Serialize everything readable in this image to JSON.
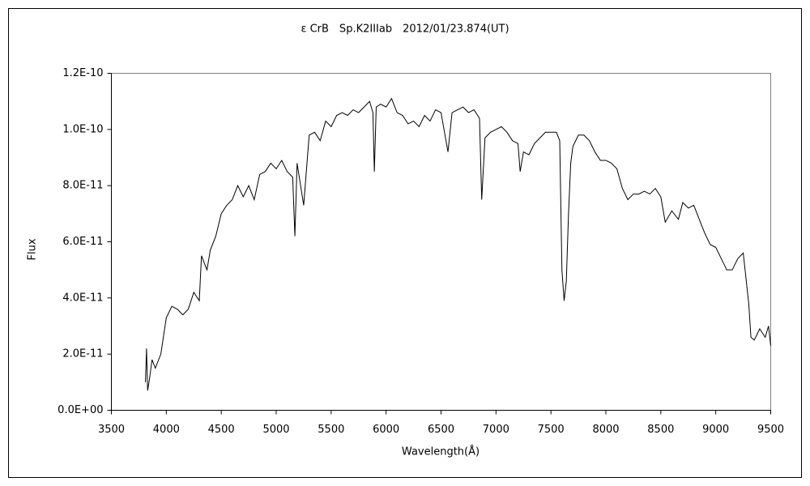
{
  "chart_data": {
    "type": "line",
    "title": "ε CrB　Sp.K2IIIab　2012/01/23.874(UT)",
    "x_label": "Wavelength(Å)",
    "y_label": "Flux",
    "xlim": [
      3500,
      9500
    ],
    "xticks": [
      3500,
      4000,
      4500,
      5000,
      5500,
      6000,
      6500,
      7000,
      7500,
      8000,
      8500,
      9000,
      9500
    ],
    "ylim": [
      0,
      1.2e-10
    ],
    "yticks": [
      {
        "value": 0,
        "label": "0.0E+00"
      },
      {
        "value": 2e-11,
        "label": "2.0E-11"
      },
      {
        "value": 4e-11,
        "label": "4.0E-11"
      },
      {
        "value": 6e-11,
        "label": "6.0E-11"
      },
      {
        "value": 8e-11,
        "label": "8.0E-11"
      },
      {
        "value": 1e-10,
        "label": "1.0E-10"
      },
      {
        "value": 1.2e-10,
        "label": "1.2E-10"
      }
    ],
    "x": [
      3810,
      3820,
      3830,
      3850,
      3870,
      3900,
      3950,
      4000,
      4050,
      4100,
      4150,
      4200,
      4250,
      4300,
      4320,
      4370,
      4400,
      4450,
      4500,
      4550,
      4600,
      4650,
      4700,
      4750,
      4800,
      4850,
      4900,
      4950,
      5000,
      5050,
      5100,
      5150,
      5170,
      5190,
      5250,
      5300,
      5350,
      5400,
      5450,
      5500,
      5550,
      5600,
      5650,
      5700,
      5750,
      5800,
      5850,
      5880,
      5893,
      5910,
      5950,
      6000,
      6050,
      6100,
      6150,
      6200,
      6250,
      6300,
      6350,
      6400,
      6450,
      6500,
      6563,
      6600,
      6650,
      6700,
      6750,
      6800,
      6850,
      6870,
      6900,
      6950,
      7000,
      7050,
      7100,
      7150,
      7200,
      7220,
      7250,
      7300,
      7350,
      7400,
      7450,
      7500,
      7550,
      7580,
      7600,
      7620,
      7640,
      7660,
      7680,
      7700,
      7750,
      7800,
      7850,
      7900,
      7950,
      8000,
      8050,
      8100,
      8150,
      8200,
      8250,
      8300,
      8350,
      8400,
      8450,
      8500,
      8540,
      8600,
      8660,
      8700,
      8750,
      8800,
      8850,
      8900,
      8950,
      9000,
      9050,
      9100,
      9150,
      9200,
      9250,
      9300,
      9320,
      9350,
      9400,
      9450,
      9480,
      9500
    ],
    "series": [
      {
        "color": "#000000",
        "values": [
          1e-11,
          2.2e-11,
          7e-12,
          1.2e-11,
          1.8e-11,
          1.5e-11,
          2e-11,
          3.3e-11,
          3.7e-11,
          3.6e-11,
          3.4e-11,
          3.6e-11,
          4.2e-11,
          3.9e-11,
          5.5e-11,
          5e-11,
          5.7e-11,
          6.2e-11,
          7e-11,
          7.3e-11,
          7.5e-11,
          8e-11,
          7.6e-11,
          8e-11,
          7.5e-11,
          8.4e-11,
          8.5e-11,
          8.8e-11,
          8.6e-11,
          8.9e-11,
          8.5e-11,
          8.3e-11,
          6.2e-11,
          8.8e-11,
          7.3e-11,
          9.8e-11,
          9.9e-11,
          9.6e-11,
          1.03e-10,
          1.01e-10,
          1.05e-10,
          1.06e-10,
          1.05e-10,
          1.07e-10,
          1.06e-10,
          1.08e-10,
          1.1e-10,
          1.06e-10,
          8.5e-11,
          1.08e-10,
          1.09e-10,
          1.08e-10,
          1.11e-10,
          1.06e-10,
          1.05e-10,
          1.02e-10,
          1.03e-10,
          1.01e-10,
          1.05e-10,
          1.03e-10,
          1.07e-10,
          1.06e-10,
          9.2e-11,
          1.06e-10,
          1.07e-10,
          1.08e-10,
          1.06e-10,
          1.07e-10,
          1.04e-10,
          7.5e-11,
          9.7e-11,
          9.9e-11,
          1e-10,
          1.01e-10,
          9.9e-11,
          9.6e-11,
          9.5e-11,
          8.5e-11,
          9.2e-11,
          9.1e-11,
          9.5e-11,
          9.7e-11,
          9.9e-11,
          9.9e-11,
          9.9e-11,
          9.6e-11,
          5e-11,
          3.9e-11,
          4.6e-11,
          7e-11,
          8.8e-11,
          9.4e-11,
          9.8e-11,
          9.8e-11,
          9.6e-11,
          9.2e-11,
          8.9e-11,
          8.9e-11,
          8.8e-11,
          8.6e-11,
          7.9e-11,
          7.5e-11,
          7.7e-11,
          7.7e-11,
          7.8e-11,
          7.7e-11,
          7.9e-11,
          7.6e-11,
          6.7e-11,
          7.1e-11,
          6.8e-11,
          7.4e-11,
          7.2e-11,
          7.3e-11,
          6.8e-11,
          6.3e-11,
          5.9e-11,
          5.8e-11,
          5.4e-11,
          5e-11,
          5e-11,
          5.4e-11,
          5.6e-11,
          3.8e-11,
          2.6e-11,
          2.5e-11,
          2.9e-11,
          2.6e-11,
          3e-11,
          2.3e-11
        ]
      }
    ]
  }
}
